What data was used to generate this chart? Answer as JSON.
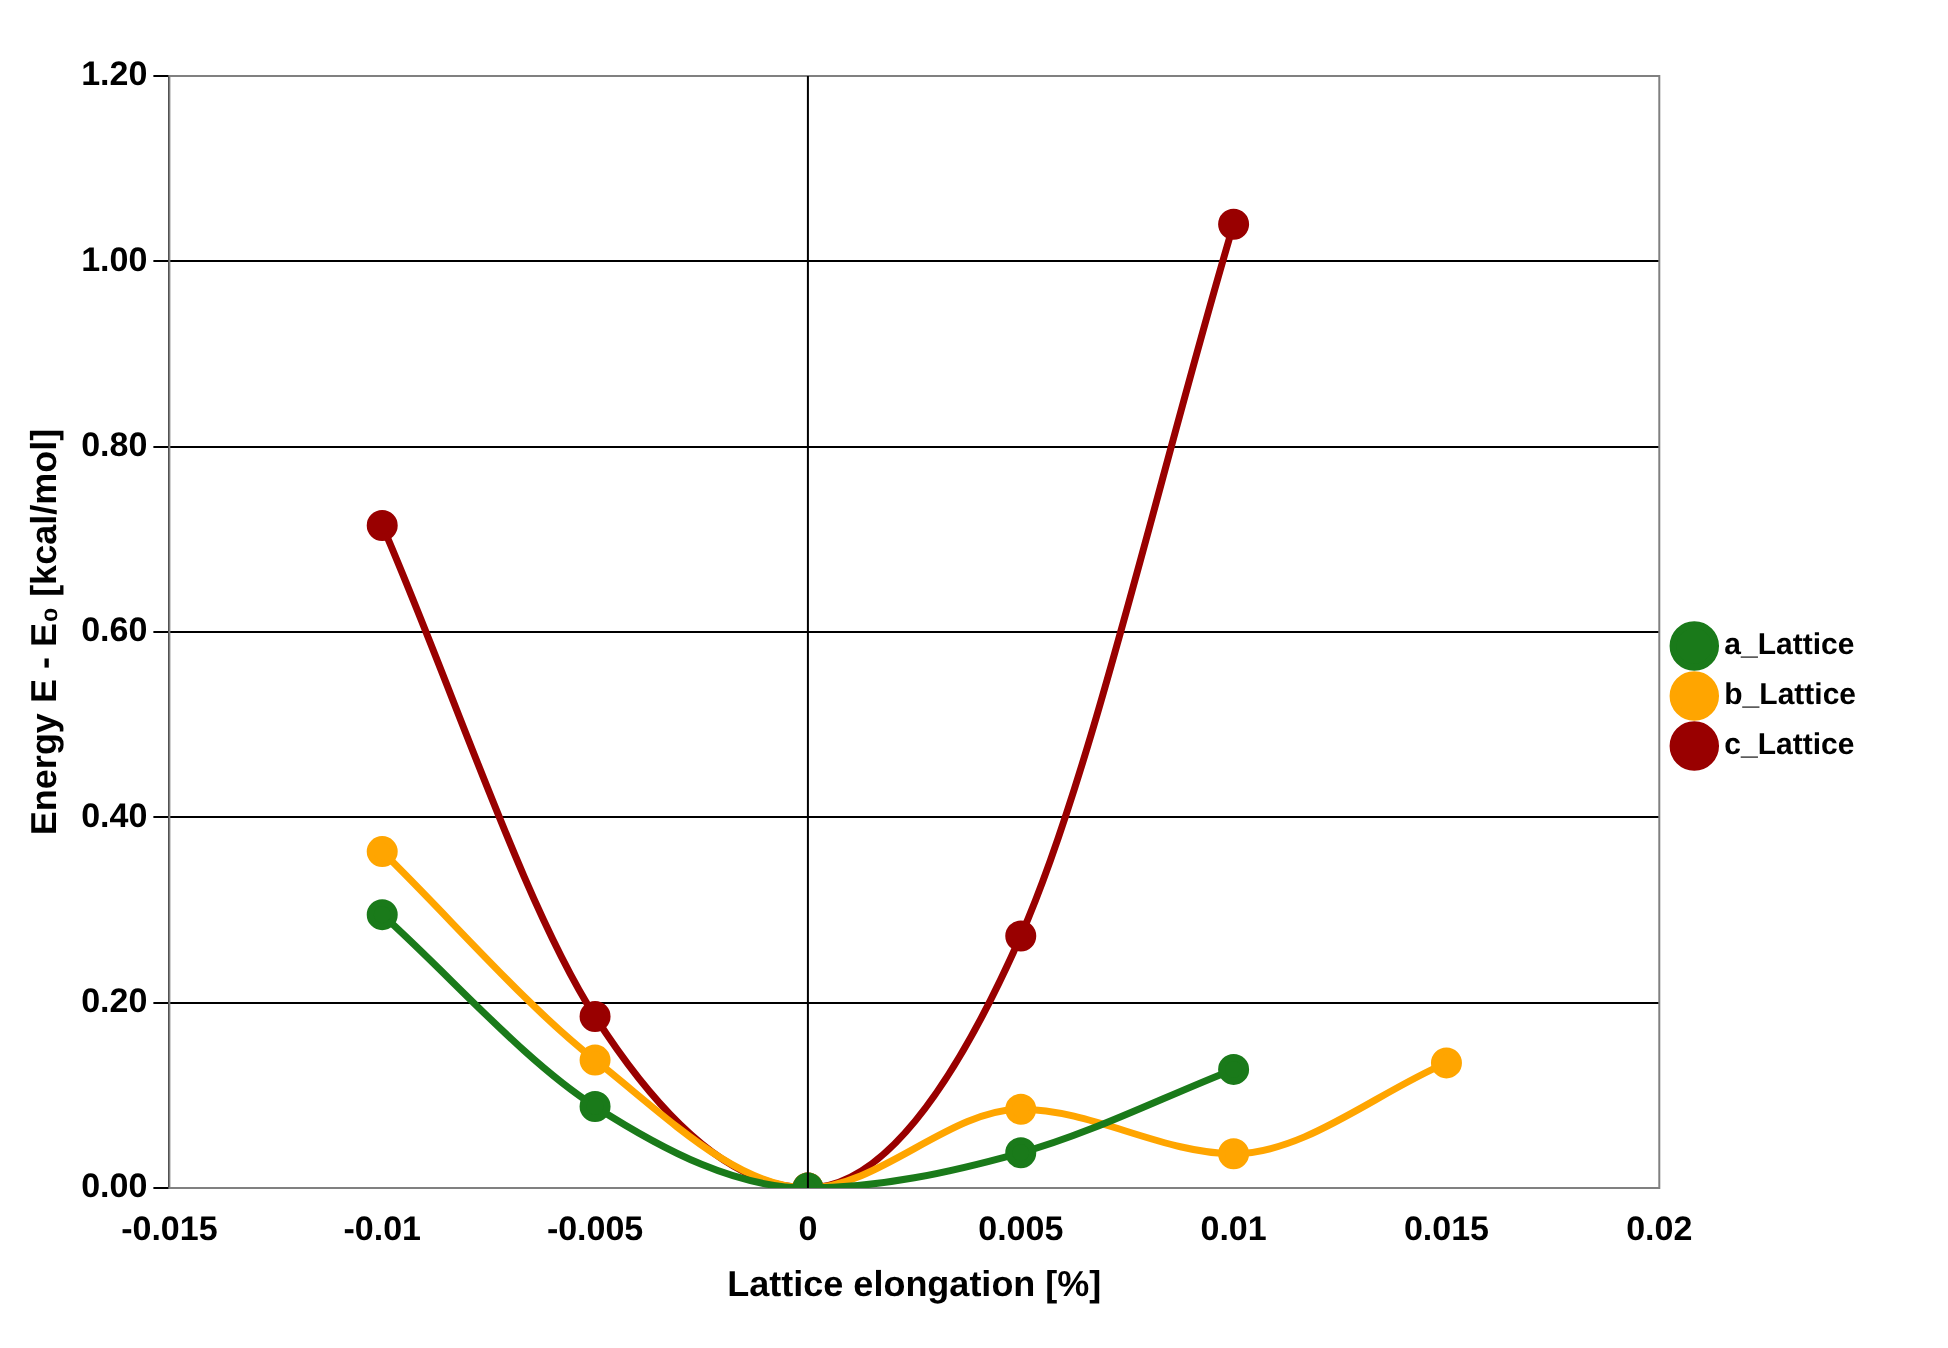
{
  "chart_data": {
    "type": "line",
    "xlabel": "Lattice elongation [%]",
    "ylabel": "Energy E - E₀ [kcal/mol]",
    "series": [
      {
        "name": "a_Lattice",
        "color": "#1a7a1a",
        "x": [
          -0.01,
          -0.005,
          0,
          0.005,
          0.01
        ],
        "values": [
          0.295,
          0.088,
          0,
          0.038,
          0.128
        ]
      },
      {
        "name": "b_Lattice",
        "color": "#ffa500",
        "x": [
          -0.01,
          -0.005,
          0,
          0.005,
          0.01,
          0.015
        ],
        "values": [
          0.363,
          0.138,
          0,
          0.085,
          0.037,
          0.135
        ]
      },
      {
        "name": "c_Lattice",
        "color": "#990000",
        "x": [
          -0.01,
          -0.005,
          0,
          0.005,
          0.01
        ],
        "values": [
          0.715,
          0.185,
          0,
          0.272,
          1.04
        ]
      }
    ],
    "xlim": [
      -0.015,
      0.02
    ],
    "xticks": [
      -0.015,
      -0.01,
      -0.005,
      0,
      0.005,
      0.01,
      0.015,
      0.02
    ],
    "ylim": [
      0,
      1.2
    ],
    "yticks": [
      {
        "value": 0,
        "label": "0.00"
      },
      {
        "value": 0.2,
        "label": "0.20"
      },
      {
        "value": 0.4,
        "label": "0.40"
      },
      {
        "value": 0.6,
        "label": "0.60"
      },
      {
        "value": 0.8,
        "label": "0.80"
      },
      {
        "value": 1,
        "label": "1.00"
      },
      {
        "value": 1.2,
        "label": "1.20"
      }
    ],
    "ref_lines": [
      {
        "axis": "x",
        "value": 0,
        "color": "#000000"
      }
    ],
    "grid": "y",
    "legend": "right",
    "marker": "circle",
    "line_style": "solid"
  }
}
